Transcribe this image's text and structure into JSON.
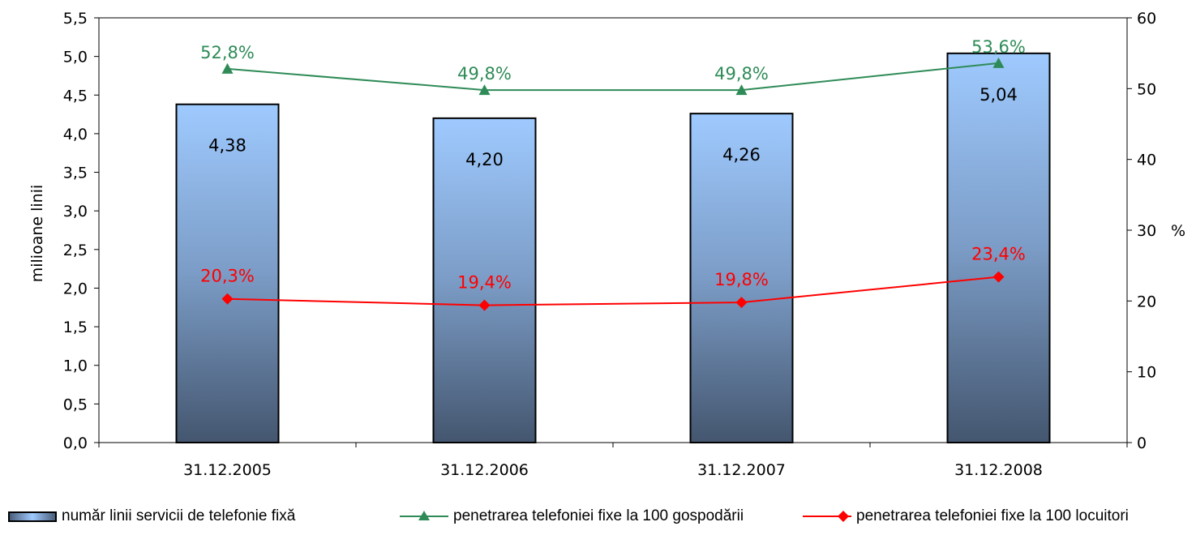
{
  "chart_data": {
    "type": "bar",
    "categories": [
      "31.12.2005",
      "31.12.2006",
      "31.12.2007",
      "31.12.2008"
    ],
    "bar_series": {
      "name": "număr linii servicii de telefonie fixă",
      "values": [
        4.38,
        4.2,
        4.26,
        5.04
      ],
      "labels": [
        "4,38",
        "4,20",
        "4,26",
        "5,04"
      ],
      "color_top": "#9fcaff",
      "color_bottom": "#44566f"
    },
    "line_series": [
      {
        "name": "penetrarea telefoniei fixe la 100 gospodării",
        "values": [
          52.8,
          49.8,
          49.8,
          53.6
        ],
        "labels": [
          "52,8%",
          "49,8%",
          "49,8%",
          "53,6%"
        ],
        "color": "#2e8b57",
        "marker": "triangle"
      },
      {
        "name": "penetrarea telefoniei fixe la 100 locuitori",
        "values": [
          20.3,
          19.4,
          19.8,
          23.4
        ],
        "labels": [
          "20,3%",
          "19,4%",
          "19,8%",
          "23,4%"
        ],
        "color": "#ff0000",
        "marker": "diamond"
      }
    ],
    "ylabel": "milioane linii",
    "ylim": [
      0,
      5.5
    ],
    "yticks": [
      "0,0",
      "0,5",
      "1,0",
      "1,5",
      "2,0",
      "2,5",
      "3,0",
      "3,5",
      "4,0",
      "4,5",
      "5,0",
      "5,5"
    ],
    "y2label": "%",
    "y2lim": [
      0,
      60
    ],
    "y2ticks": [
      "0",
      "10",
      "20",
      "30",
      "40",
      "50",
      "60"
    ],
    "legend_position": "bottom",
    "grid": false
  }
}
